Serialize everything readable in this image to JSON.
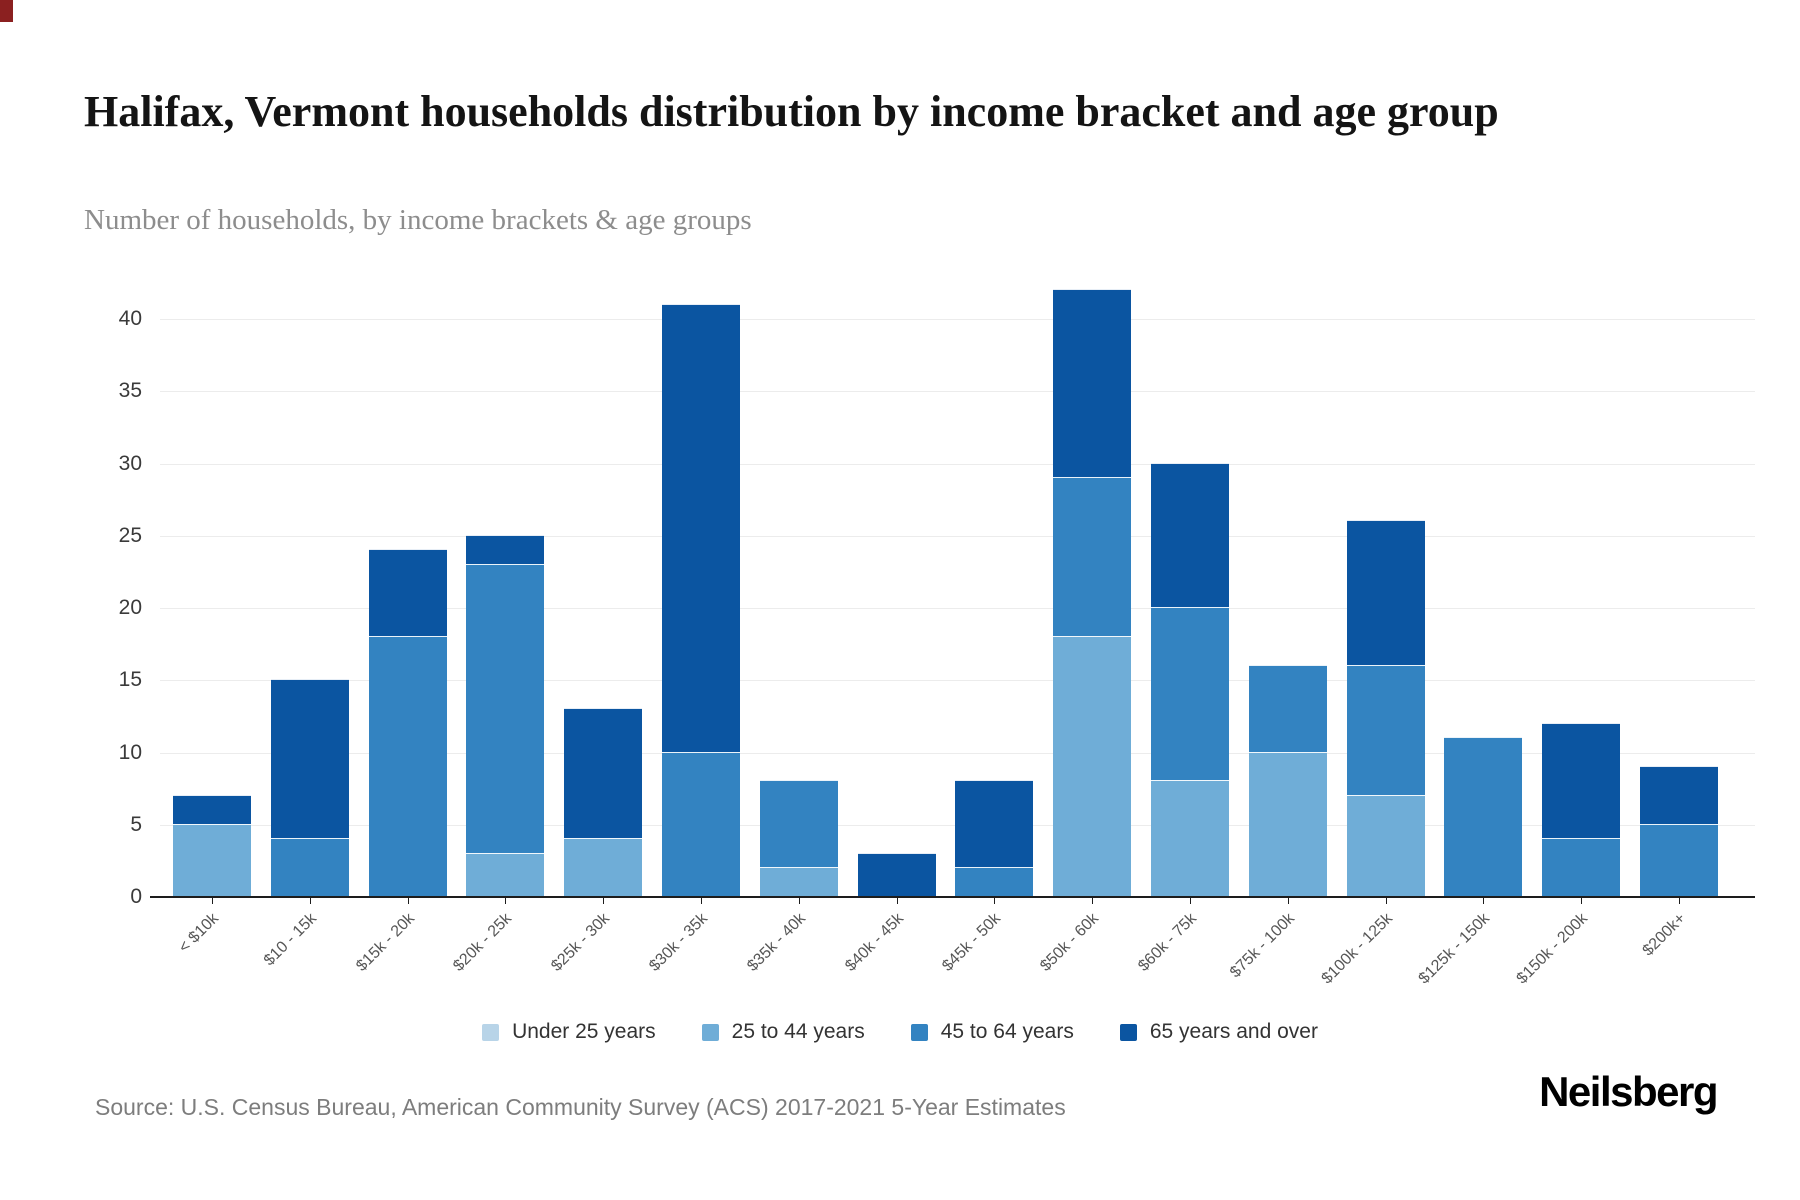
{
  "page": {
    "title": "Halifax, Vermont households distribution by income bracket and age group",
    "subtitle": "Number of households, by income brackets & age groups",
    "source": "Source: U.S. Census Bureau, American Community Survey (ACS) 2017-2021 5-Year Estimates",
    "logo": "Neilsberg"
  },
  "chart_data": {
    "type": "bar",
    "stacked": true,
    "title": "Halifax, Vermont households distribution by income bracket and age group",
    "subtitle": "Number of households, by income brackets & age groups",
    "xlabel": "",
    "ylabel": "",
    "grid": true,
    "legend_position": "bottom",
    "yticks": [
      0,
      5,
      10,
      15,
      20,
      25,
      30,
      35,
      40
    ],
    "ylim": [
      0,
      44.8
    ],
    "categories": [
      "< $10k",
      "$10 - 15k",
      "$15k - 20k",
      "$20k - 25k",
      "$25k - 30k",
      "$30k - 35k",
      "$35k - 40k",
      "$40k - 45k",
      "$45k - 50k",
      "$50k - 60k",
      "$60k - 75k",
      "$75k - 100k",
      "$100k - 125k",
      "$125k - 150k",
      "$150k - 200k",
      "$200k+"
    ],
    "series": [
      {
        "name": "Under 25 years",
        "color": "#b8d4e8",
        "values": [
          0,
          0,
          0,
          0,
          0,
          0,
          0,
          0,
          0,
          0,
          0,
          0,
          0,
          0,
          0,
          0
        ]
      },
      {
        "name": "25 to 44 years",
        "color": "#6fadd7",
        "values": [
          5,
          0,
          0,
          3,
          4,
          0,
          2,
          0,
          0,
          18,
          8,
          10,
          7,
          0,
          0,
          0
        ]
      },
      {
        "name": "45 to 64 years",
        "color": "#3383c1",
        "values": [
          0,
          4,
          18,
          20,
          0,
          10,
          6,
          0,
          2,
          11,
          12,
          6,
          9,
          11,
          4,
          5
        ]
      },
      {
        "name": "65 years and over",
        "color": "#0b55a1",
        "values": [
          2,
          11,
          6,
          2,
          9,
          31,
          0,
          3,
          6,
          13,
          10,
          0,
          10,
          0,
          8,
          4
        ]
      }
    ],
    "totals": [
      7,
      15,
      24,
      25,
      13,
      41,
      8,
      3,
      8,
      42,
      30,
      16,
      26,
      11,
      12,
      9
    ]
  }
}
